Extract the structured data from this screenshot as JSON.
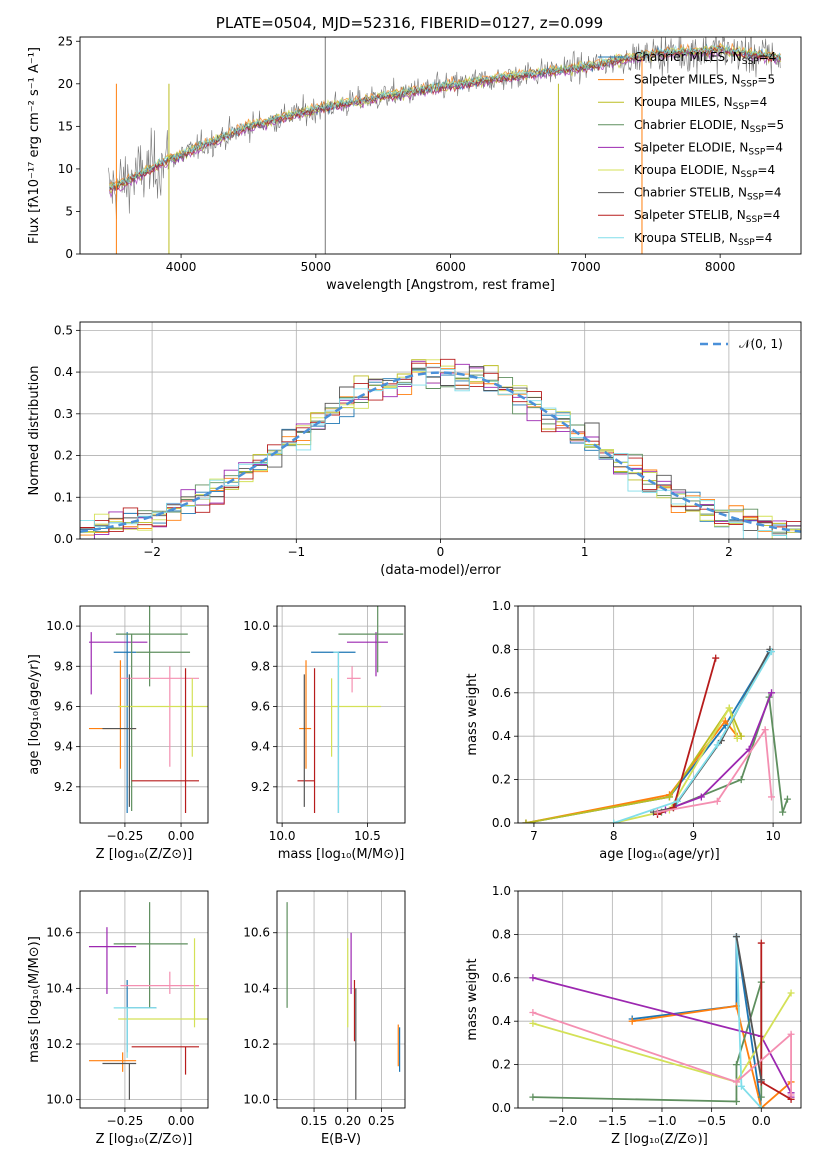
{
  "chart_data": [
    {
      "type": "line",
      "title": "PLATE=0504, MJD=52316, FIBERID=0127, z=0.099",
      "xlabel": "wavelength [Angstrom, rest frame]",
      "ylabel": "Flux [fλ10⁻¹⁷ erg cm⁻² s⁻¹ A⁻¹]",
      "xlim": [
        3250,
        8600
      ],
      "ylim": [
        0,
        25.5
      ],
      "xticks": [
        "4000",
        "5000",
        "6000",
        "7000",
        "8000"
      ],
      "yticks": [
        "0",
        "5",
        "10",
        "15",
        "20",
        "25"
      ],
      "grid": false,
      "legend_position": "top-right",
      "spectrum_trend": {
        "x": [
          3460,
          3900,
          4500,
          5000,
          5500,
          6000,
          6500,
          7000,
          7500,
          8000,
          8450
        ],
        "y": [
          7.5,
          11.0,
          15.0,
          17.0,
          18.5,
          19.8,
          21.0,
          22.0,
          23.5,
          24.0,
          23.0
        ]
      },
      "series": [
        {
          "name": "Chabrier MILES, N",
          "suffix": "=4",
          "color": "#1f77b4"
        },
        {
          "name": "Salpeter MILES, N",
          "suffix": "=5",
          "color": "#ff7f0e"
        },
        {
          "name": "Kroupa MILES, N",
          "suffix": "=4",
          "color": "#bcbd22"
        },
        {
          "name": "Chabrier ELODIE, N",
          "suffix": "=5",
          "color": "#5f8f5f"
        },
        {
          "name": "Salpeter ELODIE, N",
          "suffix": "=4",
          "color": "#9c27b0"
        },
        {
          "name": "Kroupa ELODIE, N",
          "suffix": "=4",
          "color": "#d4e157"
        },
        {
          "name": "Chabrier STELIB, N",
          "suffix": "=4",
          "color": "#555555"
        },
        {
          "name": "Salpeter STELIB, N",
          "suffix": "=4",
          "color": "#b71c1c"
        },
        {
          "name": "Kroupa STELIB, N",
          "suffix": "=4",
          "color": "#80deea"
        }
      ],
      "legend_subscript": "SSP"
    },
    {
      "type": "line",
      "xlabel": "(data-model)/error",
      "ylabel": "Normed distribution",
      "xlim": [
        -2.5,
        2.5
      ],
      "ylim": [
        0,
        0.52
      ],
      "xticks": [
        "−2",
        "−1",
        "0",
        "1",
        "2"
      ],
      "yticks": [
        "0.0",
        "0.1",
        "0.2",
        "0.3",
        "0.4",
        "0.5"
      ],
      "grid": true,
      "legend_position": "top-right",
      "legend_label": "𝒩(0, 1)",
      "reference_curve": {
        "name": "N(0,1)",
        "mean": 0,
        "sigma": 1,
        "color": "#4a90d9",
        "style": "dashed"
      }
    },
    {
      "type": "scatter",
      "xlabel": "Z [log₁₀(Z/Z⊙)]",
      "ylabel": "age  [log₁₀(age/yr)]",
      "xlim": [
        -0.45,
        0.12
      ],
      "ylim": [
        9.02,
        10.1
      ],
      "xticks": [
        "−0.25",
        "0.00"
      ],
      "yticks": [
        "9.2",
        "9.4",
        "9.6",
        "9.8",
        "10.0"
      ],
      "points": [
        {
          "x": -0.4,
          "x0": -0.41,
          "x1": -0.15,
          "y": 9.92,
          "y0": 9.66,
          "y1": 9.97,
          "color": "#9c27b0"
        },
        {
          "x": -0.27,
          "x0": -0.41,
          "x1": -0.2,
          "y": 9.49,
          "y0": 9.29,
          "y1": 9.83,
          "color": "#ff7f0e"
        },
        {
          "x": -0.24,
          "x0": -0.3,
          "x1": -0.2,
          "y": 9.87,
          "y0": 9.07,
          "y1": 9.97,
          "color": "#1f77b4"
        },
        {
          "x": -0.22,
          "x0": -0.29,
          "x1": 0.03,
          "y": 9.96,
          "y0": 9.08,
          "y1": 9.96,
          "color": "#5f8f5f"
        },
        {
          "x": -0.14,
          "x0": -0.2,
          "x1": 0.04,
          "y": 9.87,
          "y0": 9.7,
          "y1": 10.11,
          "color": "#5f8f5f"
        },
        {
          "x": -0.05,
          "x0": -0.27,
          "x1": 0.08,
          "y": 9.74,
          "y0": 9.3,
          "y1": 9.8,
          "color": "#f48fb1"
        },
        {
          "x": 0.05,
          "x0": -0.28,
          "x1": 0.14,
          "y": 9.6,
          "y0": 9.35,
          "y1": 9.74,
          "color": "#d4e157"
        },
        {
          "x": 0.02,
          "x0": -0.22,
          "x1": 0.08,
          "y": 9.23,
          "y0": 9.07,
          "y1": 9.79,
          "color": "#b71c1c"
        },
        {
          "x": -0.23,
          "x0": -0.35,
          "x1": -0.2,
          "y": 9.49,
          "y0": 9.1,
          "y1": 9.76,
          "color": "#555555"
        }
      ]
    },
    {
      "type": "scatter",
      "xlabel": "mass [log₁₀(M/M⊙)]",
      "xlim": [
        9.97,
        10.72
      ],
      "ylim": [
        9.02,
        10.1
      ],
      "xticks": [
        "10.0",
        "10.5"
      ],
      "yticks": [
        "9.2",
        "9.4",
        "9.6",
        "9.8",
        "10.0"
      ],
      "points": [
        {
          "x": 10.55,
          "x0": 10.38,
          "x1": 10.62,
          "y": 9.92,
          "y0": 9.75,
          "y1": 9.97,
          "color": "#9c27b0"
        },
        {
          "x": 10.14,
          "x0": 10.1,
          "x1": 10.17,
          "y": 9.49,
          "y0": 9.29,
          "y1": 9.83,
          "color": "#ff7f0e"
        },
        {
          "x": 10.33,
          "x0": 10.17,
          "x1": 10.43,
          "y": 9.87,
          "y0": 9.07,
          "y1": 9.87,
          "color": "#1f77b4"
        },
        {
          "x": 10.56,
          "x0": 10.33,
          "x1": 10.71,
          "y": 9.96,
          "y0": 9.77,
          "y1": 10.11,
          "color": "#5f8f5f"
        },
        {
          "x": 10.41,
          "x0": 10.38,
          "x1": 10.46,
          "y": 9.74,
          "y0": 9.67,
          "y1": 9.8,
          "color": "#f48fb1"
        },
        {
          "x": 10.29,
          "x0": 10.29,
          "x1": 10.58,
          "y": 9.6,
          "y0": 9.35,
          "y1": 9.74,
          "color": "#d4e157"
        },
        {
          "x": 10.19,
          "x0": 10.09,
          "x1": 10.19,
          "y": 9.23,
          "y0": 9.07,
          "y1": 9.79,
          "color": "#b71c1c"
        },
        {
          "x": 10.13,
          "x0": 10.13,
          "x1": 10.13,
          "y": 9.49,
          "y0": 9.1,
          "y1": 9.76,
          "color": "#555555"
        },
        {
          "x": 10.33,
          "x0": 10.3,
          "x1": 10.33,
          "y": 9.87,
          "y0": 9.07,
          "y1": 9.87,
          "color": "#80deea"
        }
      ]
    },
    {
      "type": "line",
      "xlabel": "age  [log₁₀(age/yr)]",
      "ylabel": "mass weight",
      "xlim": [
        6.8,
        10.35
      ],
      "ylim": [
        0,
        1
      ],
      "xticks": [
        "7",
        "8",
        "9",
        "10"
      ],
      "yticks": [
        "0.0",
        "0.2",
        "0.4",
        "0.6",
        "0.8",
        "1.0"
      ],
      "grid": true,
      "series": [
        {
          "color": "#1f77b4",
          "x": [
            6.9,
            8.7,
            9.4,
            9.96
          ],
          "y": [
            0.0,
            0.12,
            0.45,
            0.79
          ]
        },
        {
          "color": "#ff7f0e",
          "x": [
            6.9,
            8.7,
            9.4,
            9.55
          ],
          "y": [
            0.0,
            0.13,
            0.47,
            0.4
          ]
        },
        {
          "color": "#bcbd22",
          "x": [
            6.9,
            8.7,
            9.45,
            9.6
          ],
          "y": [
            0.0,
            0.12,
            0.53,
            0.4
          ]
        },
        {
          "color": "#5f8f5f",
          "x": [
            8.6,
            9.6,
            9.95,
            10.12,
            10.18
          ],
          "y": [
            0.05,
            0.2,
            0.58,
            0.05,
            0.11
          ]
        },
        {
          "color": "#9c27b0",
          "x": [
            8.65,
            9.1,
            9.7,
            9.98
          ],
          "y": [
            0.06,
            0.12,
            0.34,
            0.6
          ]
        },
        {
          "color": "#d4e157",
          "x": [
            8.0,
            8.7,
            9.45,
            9.55
          ],
          "y": [
            0.0,
            0.06,
            0.53,
            0.39
          ]
        },
        {
          "color": "#555555",
          "x": [
            8.5,
            8.75,
            9.35,
            9.96
          ],
          "y": [
            0.05,
            0.07,
            0.38,
            0.8
          ]
        },
        {
          "color": "#b71c1c",
          "x": [
            8.55,
            8.75,
            9.28
          ],
          "y": [
            0.04,
            0.07,
            0.76
          ]
        },
        {
          "color": "#80deea",
          "x": [
            8.0,
            8.8,
            9.3,
            9.98
          ],
          "y": [
            0.0,
            0.1,
            0.36,
            0.79
          ]
        },
        {
          "color": "#f48fb1",
          "x": [
            8.55,
            9.3,
            9.9,
            9.98
          ],
          "y": [
            0.05,
            0.1,
            0.43,
            0.12
          ]
        }
      ]
    },
    {
      "type": "scatter",
      "xlabel": "Z [log₁₀(Z/Z⊙)]",
      "ylabel": "mass [log₁₀(M/M⊙)]",
      "xlim": [
        -0.45,
        0.12
      ],
      "ylim": [
        9.97,
        10.75
      ],
      "xticks": [
        "−0.25",
        "0.00"
      ],
      "yticks": [
        "10.0",
        "10.2",
        "10.4",
        "10.6"
      ],
      "points": [
        {
          "x": -0.33,
          "x0": -0.41,
          "x1": -0.2,
          "y": 10.55,
          "y0": 10.38,
          "y1": 10.62,
          "color": "#9c27b0"
        },
        {
          "x": -0.26,
          "x0": -0.41,
          "x1": -0.2,
          "y": 10.14,
          "y0": 10.1,
          "y1": 10.17,
          "color": "#ff7f0e"
        },
        {
          "x": -0.24,
          "x0": -0.24,
          "x1": -0.11,
          "y": 10.33,
          "y0": 10.17,
          "y1": 10.43,
          "color": "#1f77b4"
        },
        {
          "x": -0.14,
          "x0": -0.3,
          "x1": 0.03,
          "y": 10.56,
          "y0": 10.33,
          "y1": 10.71,
          "color": "#5f8f5f"
        },
        {
          "x": -0.05,
          "x0": -0.27,
          "x1": 0.08,
          "y": 10.41,
          "y0": 10.38,
          "y1": 10.46,
          "color": "#f48fb1"
        },
        {
          "x": 0.06,
          "x0": -0.28,
          "x1": 0.14,
          "y": 10.29,
          "y0": 10.26,
          "y1": 10.58,
          "color": "#d4e157"
        },
        {
          "x": 0.02,
          "x0": -0.22,
          "x1": 0.08,
          "y": 10.19,
          "y0": 10.09,
          "y1": 10.19,
          "color": "#b71c1c"
        },
        {
          "x": -0.23,
          "x0": -0.35,
          "x1": -0.2,
          "y": 10.13,
          "y0": 10.0,
          "y1": 10.13,
          "color": "#555555"
        },
        {
          "x": -0.24,
          "x0": -0.3,
          "x1": -0.11,
          "y": 10.33,
          "y0": 10.15,
          "y1": 10.33,
          "color": "#80deea"
        }
      ]
    },
    {
      "type": "scatter",
      "xlabel": "E(B-V)",
      "xlim": [
        0.095,
        0.285
      ],
      "ylim": [
        9.97,
        10.75
      ],
      "xticks": [
        "0.15",
        "0.20",
        "0.25"
      ],
      "yticks": [
        "10.0",
        "10.2",
        "10.4",
        "10.6"
      ],
      "points": [
        {
          "x": 0.11,
          "y": 10.52,
          "y0": 10.33,
          "y1": 10.71,
          "color": "#5f8f5f"
        },
        {
          "x": 0.2,
          "y": 10.45,
          "y0": 10.26,
          "y1": 10.58,
          "color": "#d4e157"
        },
        {
          "x": 0.205,
          "y": 10.48,
          "y0": 10.38,
          "y1": 10.6,
          "color": "#9c27b0"
        },
        {
          "x": 0.21,
          "y": 10.32,
          "y0": 10.21,
          "y1": 10.43,
          "color": "#b71c1c"
        },
        {
          "x": 0.212,
          "y": 10.18,
          "y0": 10.0,
          "y1": 10.4,
          "color": "#555555"
        },
        {
          "x": 0.275,
          "y": 10.21,
          "y0": 10.12,
          "y1": 10.27,
          "color": "#ff7f0e"
        },
        {
          "x": 0.277,
          "y": 10.18,
          "y0": 10.1,
          "y1": 10.26,
          "color": "#1f77b4"
        }
      ]
    },
    {
      "type": "line",
      "xlabel": "Z [log₁₀(Z/Z⊙)]",
      "ylabel": "mass weight",
      "xlim": [
        -2.45,
        0.4
      ],
      "ylim": [
        0,
        1
      ],
      "xticks": [
        "−2.0",
        "−1.5",
        "−1.0",
        "−0.5",
        "0.0"
      ],
      "yticks": [
        "0.0",
        "0.2",
        "0.4",
        "0.6",
        "0.8",
        "1.0"
      ],
      "grid": true,
      "series": [
        {
          "color": "#1f77b4",
          "x": [
            -1.3,
            -0.25,
            -0.25,
            0.0
          ],
          "y": [
            0.41,
            0.47,
            0.79,
            0.0
          ]
        },
        {
          "color": "#ff7f0e",
          "x": [
            -1.3,
            -0.25,
            0.0,
            0.3
          ],
          "y": [
            0.4,
            0.47,
            0.0,
            0.12
          ]
        },
        {
          "color": "#5f8f5f",
          "x": [
            -2.3,
            -0.25,
            -0.25,
            0.0,
            0.0
          ],
          "y": [
            0.05,
            0.03,
            0.2,
            0.58,
            0.05
          ]
        },
        {
          "color": "#9c27b0",
          "x": [
            -2.3,
            0.0,
            0.3,
            0.3
          ],
          "y": [
            0.6,
            0.33,
            0.07,
            0.05
          ]
        },
        {
          "color": "#d4e157",
          "x": [
            -2.3,
            -0.25,
            0.3
          ],
          "y": [
            0.39,
            0.12,
            0.53
          ]
        },
        {
          "color": "#b71c1c",
          "x": [
            0.0,
            0.0,
            0.3
          ],
          "y": [
            0.76,
            0.12,
            0.04
          ]
        },
        {
          "color": "#80deea",
          "x": [
            -0.25,
            -0.2,
            0.0
          ],
          "y": [
            0.79,
            0.1,
            0.0
          ]
        },
        {
          "color": "#f48fb1",
          "x": [
            -2.3,
            -0.25,
            0.3,
            0.3
          ],
          "y": [
            0.44,
            0.12,
            0.34,
            0.06
          ]
        },
        {
          "color": "#555555",
          "x": [
            -0.25,
            0.0
          ],
          "y": [
            0.79,
            0.13
          ]
        }
      ]
    }
  ]
}
